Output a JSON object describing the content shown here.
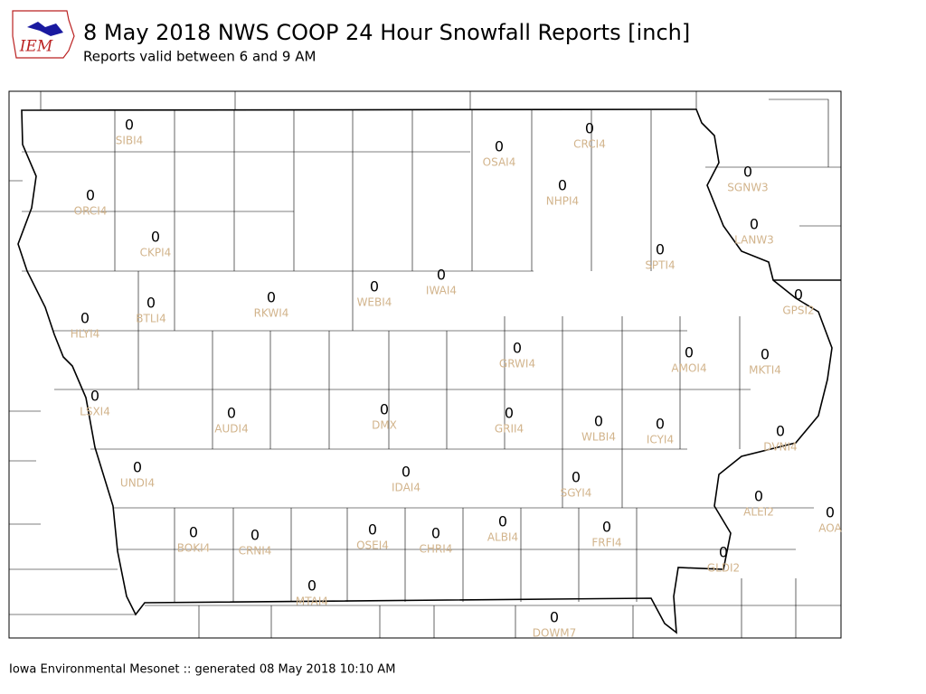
{
  "logo_text": "IEM",
  "title": "8 May 2018 NWS COOP 24 Hour Snowfall Reports [inch]",
  "subtitle": "Reports valid between 6 and 9 AM",
  "footer": "Iowa Environmental Mesonet :: generated 08 May 2018 10:10 AM",
  "stations": [
    {
      "name": "SIBI4",
      "value": 0
    },
    {
      "name": "OSAI4",
      "value": 0
    },
    {
      "name": "CRCI4",
      "value": 0
    },
    {
      "name": "ORCI4",
      "value": 0
    },
    {
      "name": "NHPI4",
      "value": 0
    },
    {
      "name": "SGNW3",
      "value": 0
    },
    {
      "name": "CKPI4",
      "value": 0
    },
    {
      "name": "LANW3",
      "value": 0
    },
    {
      "name": "SPTI4",
      "value": 0
    },
    {
      "name": "IWAI4",
      "value": 0
    },
    {
      "name": "WEBI4",
      "value": 0
    },
    {
      "name": "RKWI4",
      "value": 0
    },
    {
      "name": "BTLI4",
      "value": 0
    },
    {
      "name": "GPSI2",
      "value": 0
    },
    {
      "name": "HLYI4",
      "value": 0
    },
    {
      "name": "GRWI4",
      "value": 0
    },
    {
      "name": "AMOI4",
      "value": 0
    },
    {
      "name": "MKTI4",
      "value": 0
    },
    {
      "name": "LSXI4",
      "value": 0
    },
    {
      "name": "DMX",
      "value": 0
    },
    {
      "name": "AUDI4",
      "value": 0
    },
    {
      "name": "GRII4",
      "value": 0
    },
    {
      "name": "WLBI4",
      "value": 0
    },
    {
      "name": "ICYI4",
      "value": 0
    },
    {
      "name": "DVNI4",
      "value": 0
    },
    {
      "name": "UNDI4",
      "value": 0
    },
    {
      "name": "IDAI4",
      "value": 0
    },
    {
      "name": "SGYI4",
      "value": 0
    },
    {
      "name": "ALEI2",
      "value": 0
    },
    {
      "name": "AOA",
      "value": 0
    },
    {
      "name": "BOKI4",
      "value": 0
    },
    {
      "name": "CRNI4",
      "value": 0
    },
    {
      "name": "OSEI4",
      "value": 0
    },
    {
      "name": "CHRI4",
      "value": 0
    },
    {
      "name": "ALBI4",
      "value": 0
    },
    {
      "name": "FRFI4",
      "value": 0
    },
    {
      "name": "GLDI2",
      "value": 0
    },
    {
      "name": "MTAI4",
      "value": 0
    },
    {
      "name": "DOWM7",
      "value": 0
    }
  ]
}
